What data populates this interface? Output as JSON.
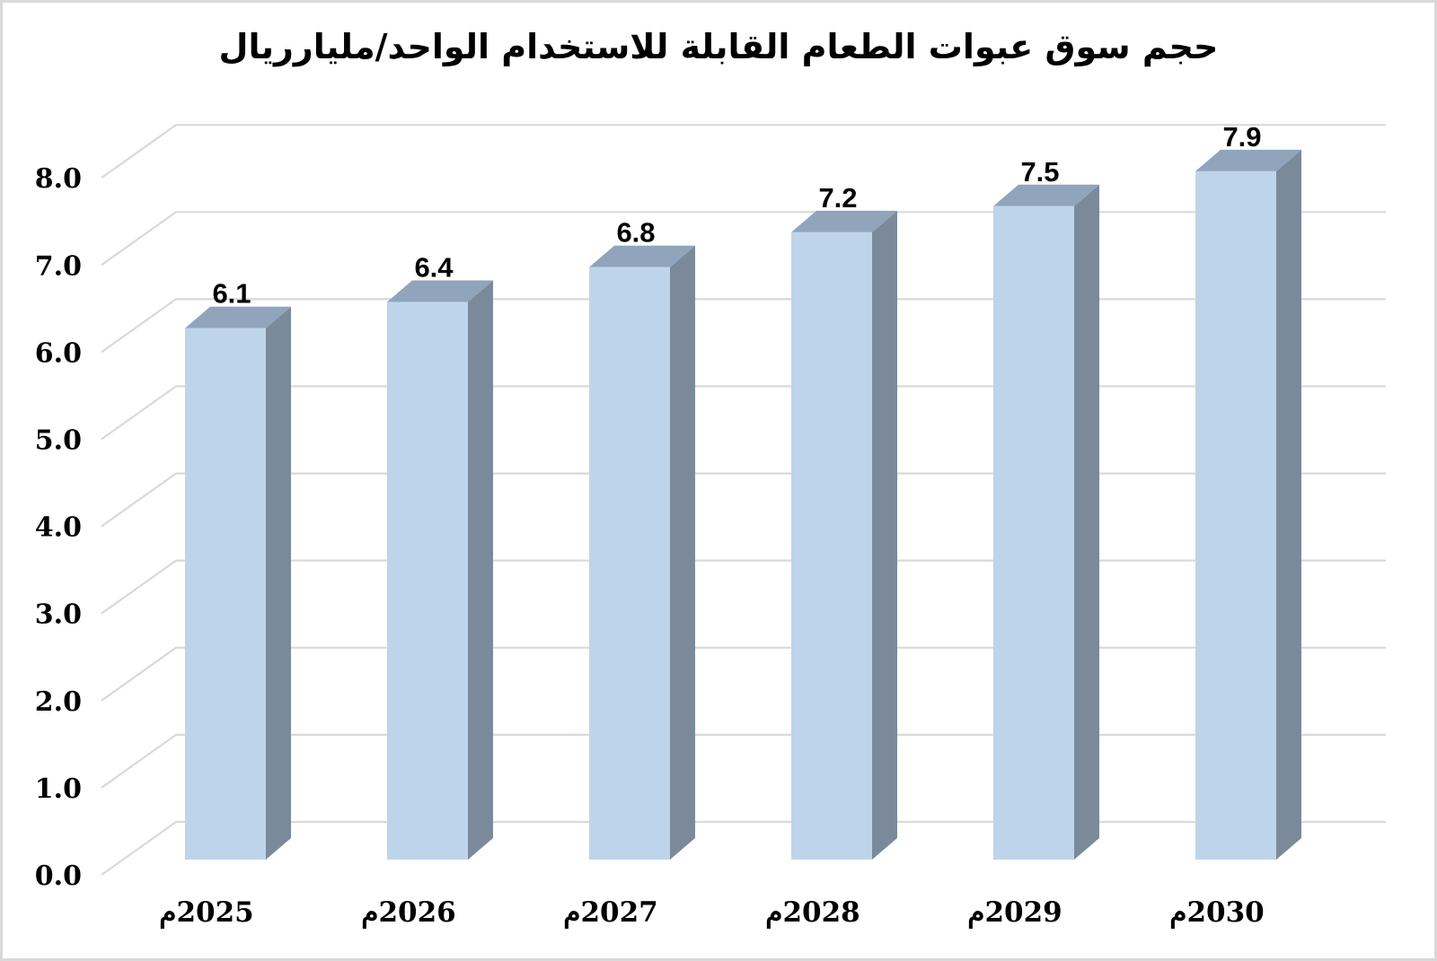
{
  "frame": {
    "background_color": "#ffffff",
    "border_color": "#d9d9d9"
  },
  "chart_data": {
    "type": "bar",
    "style": "3d-column",
    "title": "حجم سوق عبوات الطعام القابلة للاستخدام الواحد/مليارريال",
    "categories": [
      "2025م",
      "2026م",
      "2027م",
      "2028م",
      "2029م",
      "2030م"
    ],
    "values": [
      6.1,
      6.4,
      6.8,
      7.2,
      7.5,
      7.9
    ],
    "value_labels": [
      "6.1",
      "6.4",
      "6.8",
      "7.2",
      "7.5",
      "7.9"
    ],
    "xlabel": "",
    "ylabel": "",
    "ylim": [
      0,
      8
    ],
    "ytick_step": 1.0,
    "ytick_labels": [
      "0.0",
      "1.0",
      "2.0",
      "3.0",
      "4.0",
      "5.0",
      "6.0",
      "7.0",
      "8.0"
    ],
    "grid": true,
    "legend": "none",
    "colors": {
      "bar_front": "#bed4ea",
      "bar_top": "#90a5bb",
      "bar_side": "#7a8a9a",
      "gridline": "#d9d9d9",
      "text": "#000000"
    }
  }
}
